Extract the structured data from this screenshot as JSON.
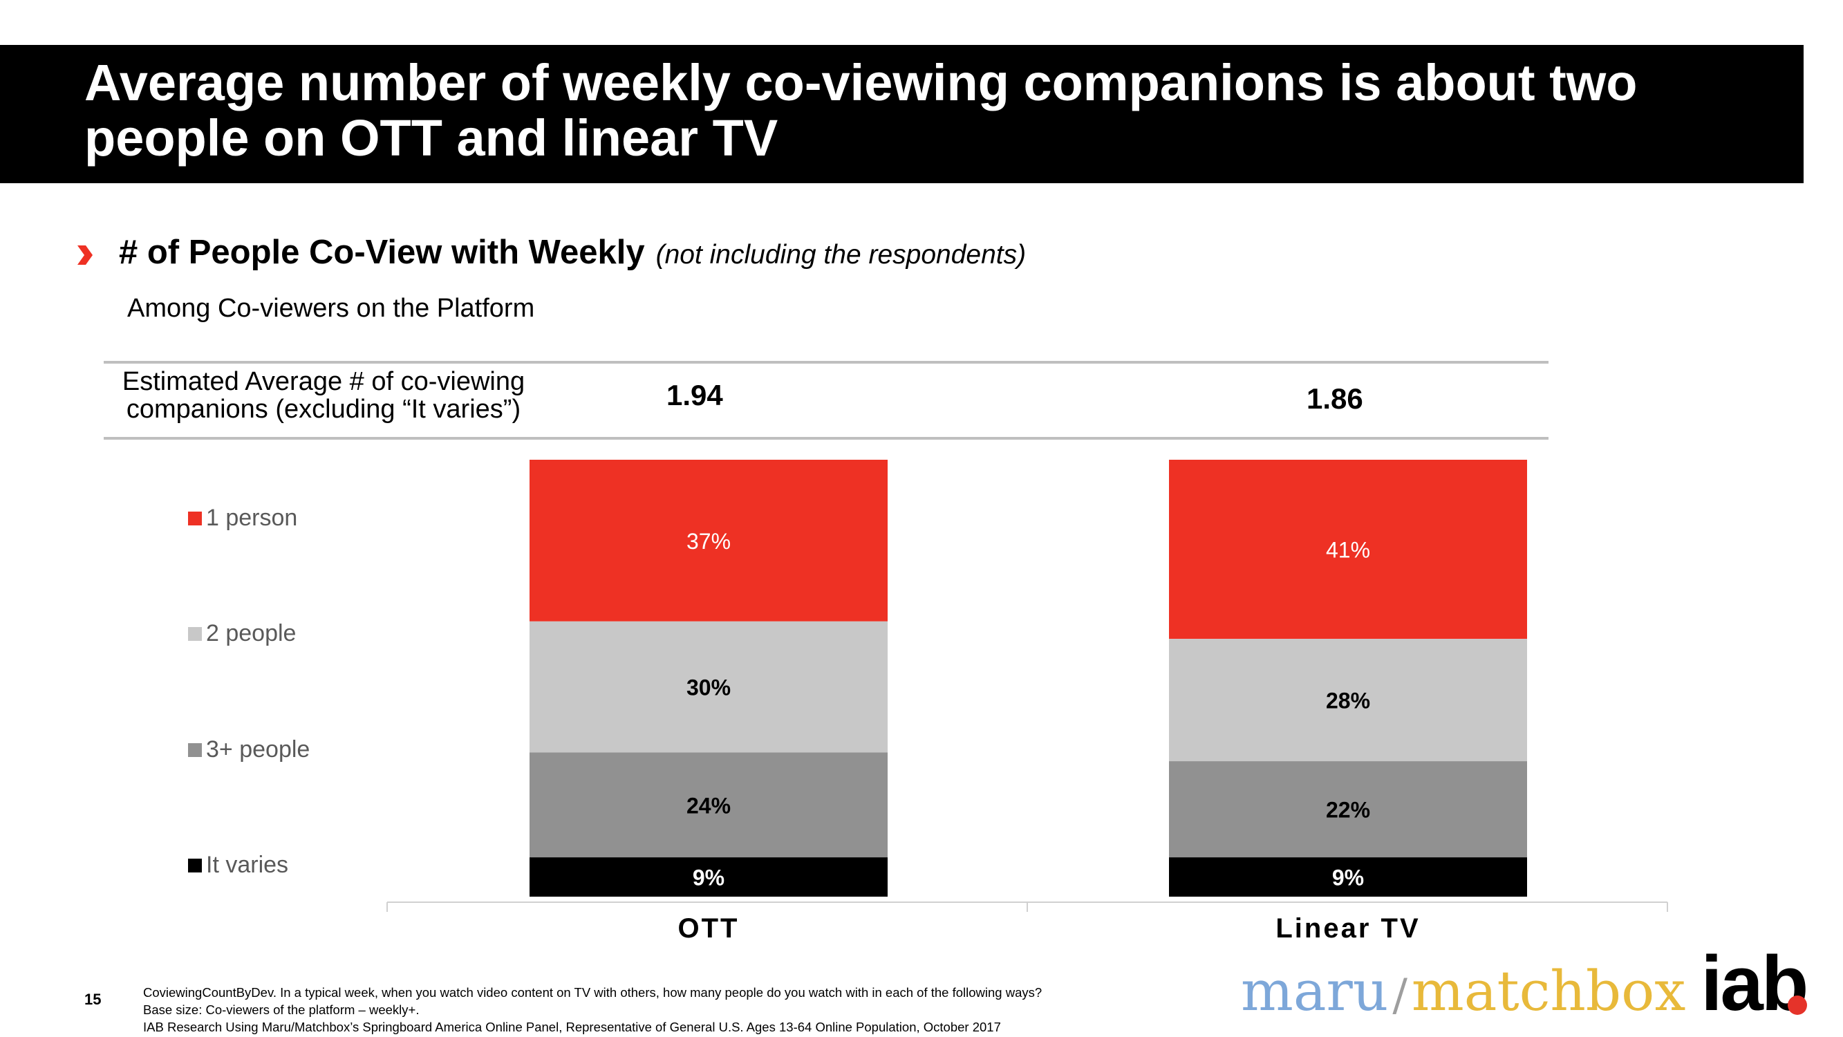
{
  "header": {
    "title": "Average number of weekly co-viewing companions is about two people on OTT and linear TV"
  },
  "section": {
    "heading": "# of People Co-View with Weekly",
    "heading_note": "(not including the respondents)",
    "subheading": "Among Co-viewers on the Platform"
  },
  "average_row": {
    "label_line1": "Estimated Average # of co-viewing",
    "label_line2": "companions (excluding “It varies”)",
    "values": [
      "1.94",
      "1.86"
    ]
  },
  "chart_data": {
    "type": "bar",
    "stacked": true,
    "title": "# of People Co-View with Weekly",
    "categories": [
      "OTT",
      "Linear TV"
    ],
    "series": [
      {
        "name": "1 person",
        "values": [
          37,
          41
        ],
        "color": "#ee3124",
        "label_color": "#ffffff",
        "label_bold": false
      },
      {
        "name": "2 people",
        "values": [
          30,
          28
        ],
        "color": "#c8c8c8",
        "label_color": "#000000",
        "label_bold": true
      },
      {
        "name": "3+ people",
        "values": [
          24,
          22
        ],
        "color": "#919191",
        "label_color": "#000000",
        "label_bold": true
      },
      {
        "name": "It varies",
        "values": [
          9,
          9
        ],
        "color": "#000000",
        "label_color": "#ffffff",
        "label_bold": true
      }
    ],
    "legend_order": [
      "1 person",
      "2 people",
      "3+ people",
      "It varies"
    ],
    "legend_position": "left",
    "value_suffix": "%",
    "xlabel": "",
    "ylabel": "",
    "ylim": [
      0,
      100
    ]
  },
  "footer": {
    "page_number": "15",
    "note_line1": "CoviewingCountByDev. In a typical week, when you watch video content on TV with others, how many people do you watch with in each of the following ways?",
    "note_line2": "Base size: Co-viewers of the platform – weekly+.",
    "note_line3": "IAB Research Using Maru/Matchbox’s Springboard America Online Panel, Representative of General U.S. Ages 13-64 Online Population, October 2017"
  },
  "logo": {
    "maru": "maru",
    "slash": "/",
    "matchbox": "matchbox",
    "iab": "iab"
  },
  "colors": {
    "accent": "#ee3124",
    "title_bg": "#000000"
  }
}
